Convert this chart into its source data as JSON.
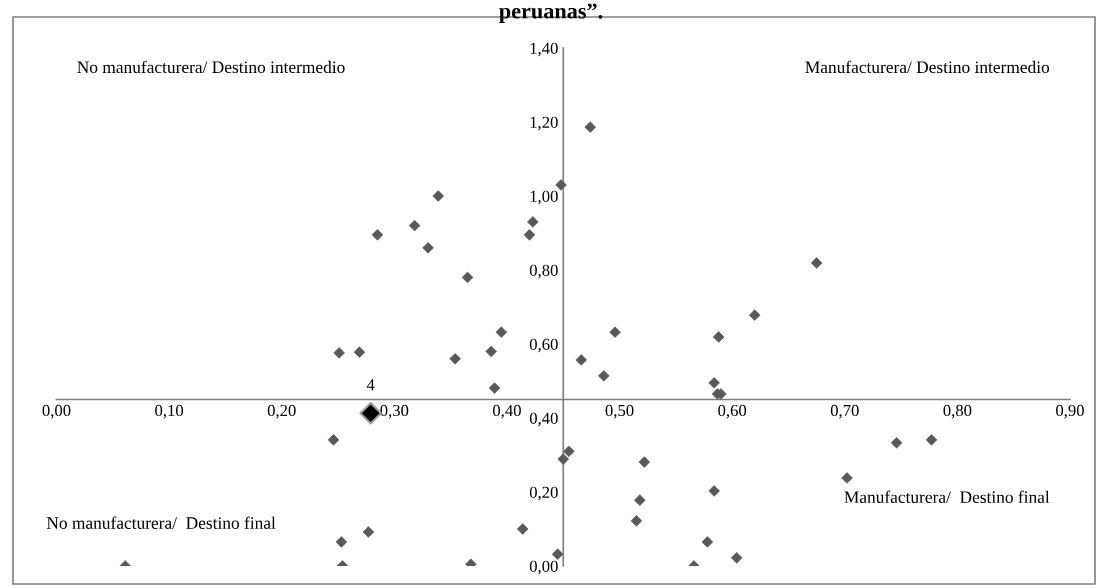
{
  "chart_data": {
    "type": "scatter",
    "title": "peruanas”.",
    "xlim": [
      0,
      0.9
    ],
    "ylim": [
      0,
      1.4
    ],
    "xticks": [
      {
        "value": 0,
        "label": "0,00"
      },
      {
        "value": 0.1,
        "label": "0,10"
      },
      {
        "value": 0.2,
        "label": "0,20"
      },
      {
        "value": 0.3,
        "label": "0,30"
      },
      {
        "value": 0.4,
        "label": "0,40"
      },
      {
        "value": 0.5,
        "label": "0,50"
      },
      {
        "value": 0.6,
        "label": "0,60"
      },
      {
        "value": 0.7,
        "label": "0,70"
      },
      {
        "value": 0.8,
        "label": "0,80"
      },
      {
        "value": 0.9,
        "label": "0,90"
      }
    ],
    "yticks": [
      {
        "value": 0,
        "label": "0,00"
      },
      {
        "value": 0.2,
        "label": "0,20"
      },
      {
        "value": 0.4,
        "label": "0,40"
      },
      {
        "value": 0.6,
        "label": "0,60"
      },
      {
        "value": 0.8,
        "label": "0,80"
      },
      {
        "value": 1.0,
        "label": "1,00"
      },
      {
        "value": 1.2,
        "label": "1,20"
      },
      {
        "value": 1.4,
        "label": "1,40"
      }
    ],
    "grid": false,
    "legend": false,
    "marker": "diamond",
    "series": [
      {
        "color": "#595959",
        "x": [
          0.448,
          0.339,
          0.318,
          0.285,
          0.33,
          0.423,
          0.42,
          0.365,
          0.251,
          0.269,
          0.354,
          0.386,
          0.395,
          0.389,
          0.474,
          0.675,
          0.62,
          0.588,
          0.496,
          0.466,
          0.486,
          0.584,
          0.587,
          0.59,
          0.246,
          0.253,
          0.277,
          0.061,
          0.254,
          0.368,
          0.414,
          0.445,
          0.45,
          0.455,
          0.522,
          0.518,
          0.515,
          0.584,
          0.578,
          0.566,
          0.604,
          0.702,
          0.746,
          0.777
        ],
        "values": [
          1.03,
          1.0,
          0.92,
          0.895,
          0.86,
          0.93,
          0.895,
          0.78,
          0.576,
          0.578,
          0.56,
          0.58,
          0.632,
          0.481,
          1.186,
          0.819,
          0.678,
          0.619,
          0.632,
          0.557,
          0.514,
          0.495,
          0.465,
          0.465,
          0.341,
          0.065,
          0.092,
          0.0,
          0.0,
          0.005,
          0.1,
          0.032,
          0.289,
          0.31,
          0.281,
          0.178,
          0.122,
          0.203,
          0.065,
          0.0,
          0.022,
          0.238,
          0.333,
          0.341
        ]
      },
      {
        "color": "#000000",
        "x": [
          0.279
        ],
        "values": [
          0.413
        ]
      }
    ],
    "annotations": [
      {
        "text": "4",
        "x": 0.279,
        "y": 0.413
      },
      "No manufacturera/ Destino intermedio",
      "Manufacturera/ Destino intermedio",
      "No manufacturera/  Destino final",
      "Manufacturera/  Destino final"
    ]
  }
}
